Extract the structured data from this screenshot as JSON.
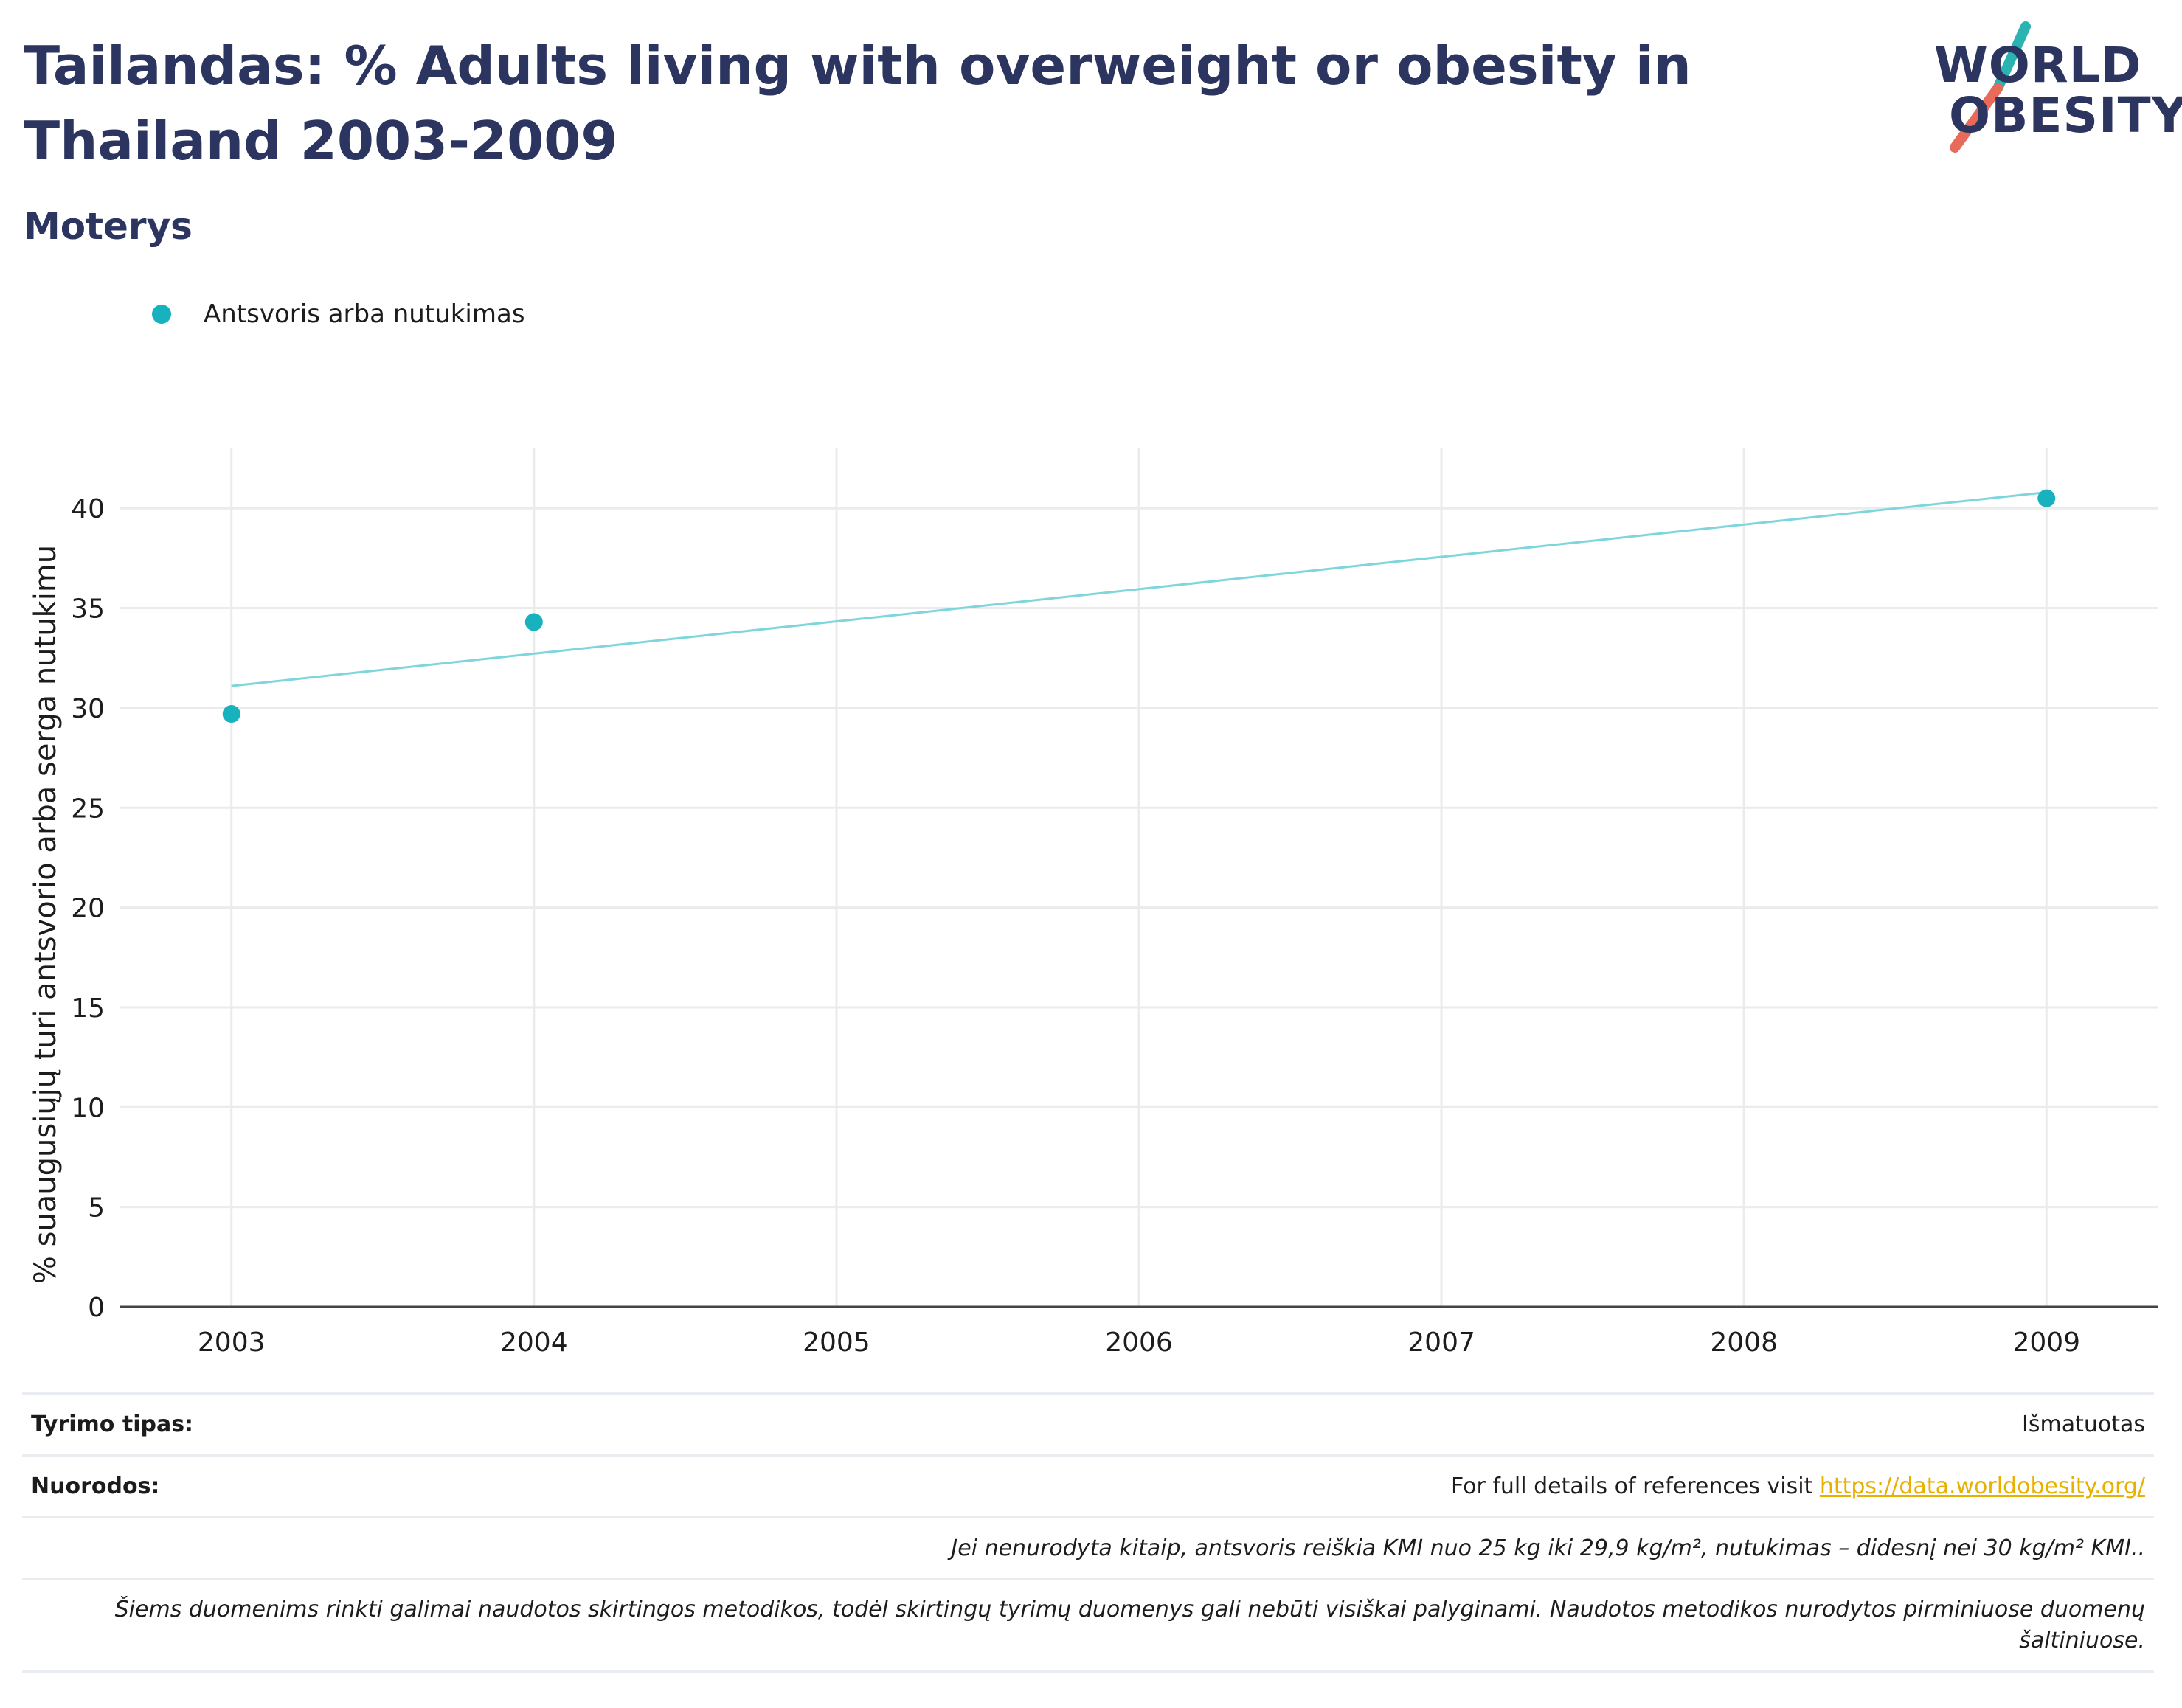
{
  "header": {
    "title": "Tailandas: % Adults living with overweight or obesity in Thailand 2003-2009",
    "subtitle": "Moterys"
  },
  "logo": {
    "line1": "WORLD",
    "line2": "OBESITY",
    "colors": {
      "teal": "#2ab3b0",
      "coral": "#e86a5a",
      "navy": "#2b3560"
    }
  },
  "legend": {
    "label": "Antsvoris arba nutukimas"
  },
  "chart_data": {
    "type": "scatter",
    "ylabel": "% suaugusiųjų turi antsvorio arba serga nutukimu",
    "xlabel": "",
    "x_ticks": [
      2003,
      2004,
      2005,
      2006,
      2007,
      2008,
      2009
    ],
    "y_ticks": [
      0,
      5,
      10,
      15,
      20,
      25,
      30,
      35,
      40
    ],
    "xlim": [
      2002.63,
      2009.37
    ],
    "ylim": [
      0,
      43
    ],
    "grid": true,
    "legend_position": "top-left",
    "series": [
      {
        "name": "Antsvoris arba nutukimas",
        "color": "#18b1be",
        "points": [
          {
            "x": 2003,
            "y": 29.7
          },
          {
            "x": 2004,
            "y": 34.3
          },
          {
            "x": 2009,
            "y": 40.5
          }
        ]
      }
    ],
    "trendline": {
      "color": "#7dd6dc",
      "points": [
        {
          "x": 2003,
          "y": 31.1
        },
        {
          "x": 2009,
          "y": 40.8
        }
      ]
    }
  },
  "footer": {
    "survey_type_label": "Tyrimo tipas:",
    "survey_type_value": "Išmatuotas",
    "references_label": "Nuorodos:",
    "references_text": "For full details of references visit ",
    "references_link": "https://data.worldobesity.org/",
    "note1": "Jei nenurodyta kitaip, antsvoris reiškia KMI nuo 25 kg iki 29,9 kg/m², nutukimas – didesnį nei 30 kg/m² KMI..",
    "note2": "Šiems duomenims rinkti galimai naudotos skirtingos metodikos, todėl skirtingų tyrimų duomenys gali nebūti visiškai palyginami. Naudotos metodikos nurodytos pirminiuose duomenų šaltiniuose."
  }
}
